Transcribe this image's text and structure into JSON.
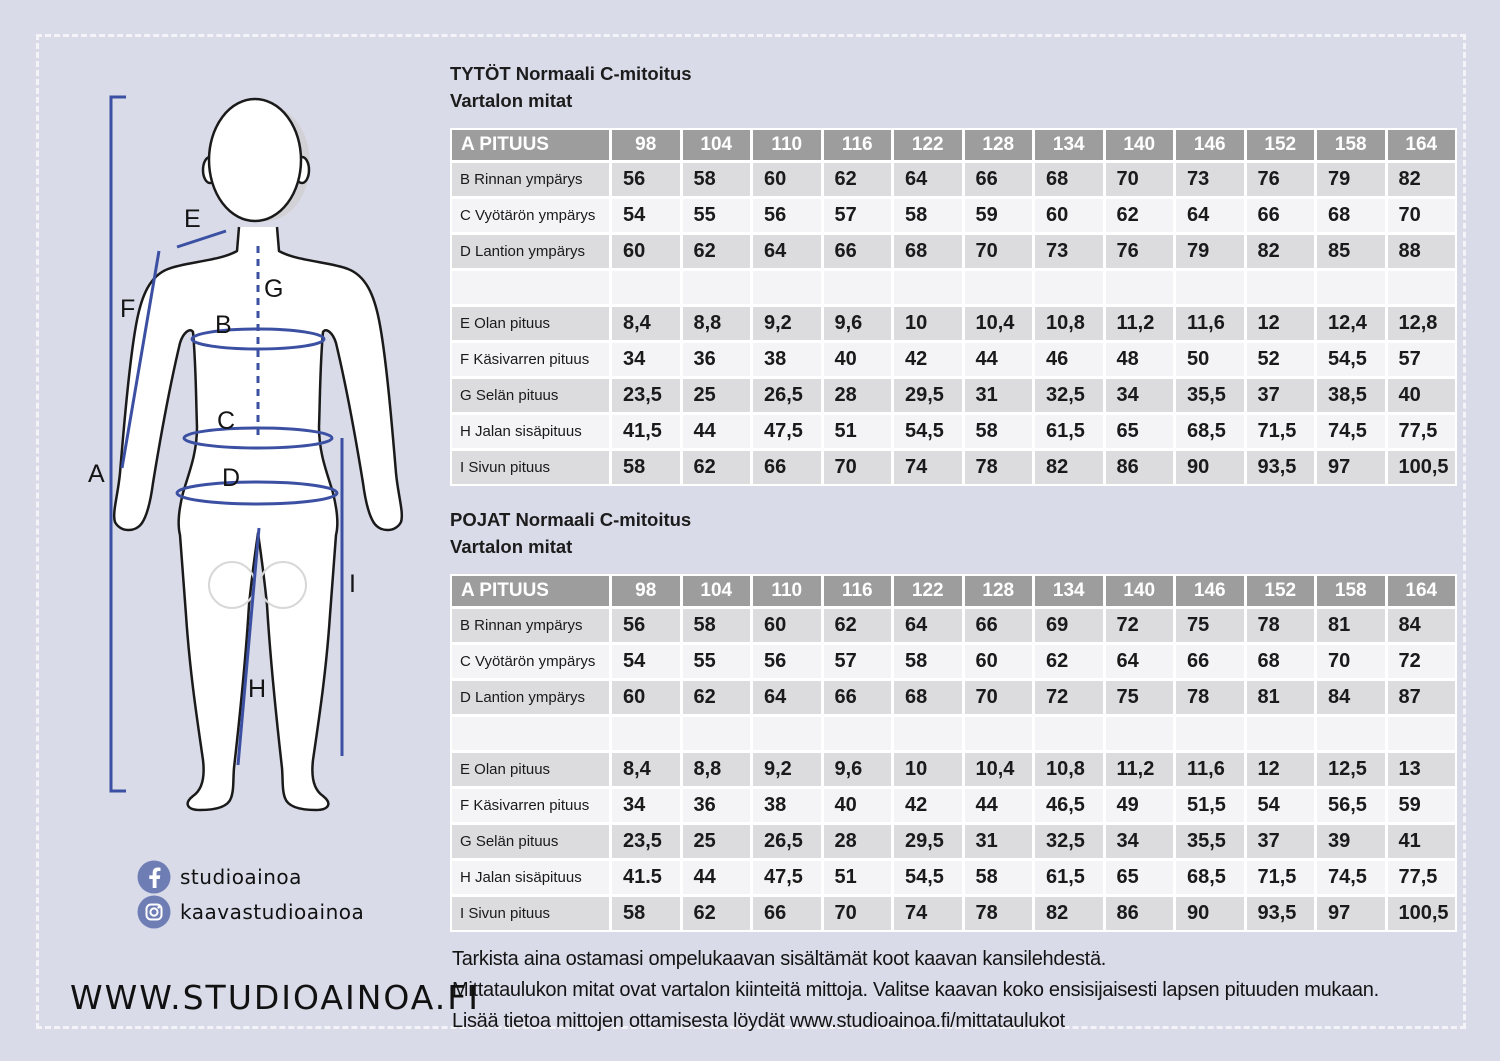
{
  "figure": {
    "labels": [
      "A",
      "B",
      "C",
      "D",
      "E",
      "F",
      "G",
      "H",
      "I"
    ]
  },
  "tables": {
    "girls": {
      "title": "TYTÖT Normaali C-mitoitus",
      "subtitle": "Vartalon mitat",
      "header": [
        "A PITUUS",
        "98",
        "104",
        "110",
        "116",
        "122",
        "128",
        "134",
        "140",
        "146",
        "152",
        "158",
        "164"
      ],
      "rows": [
        {
          "label": "B Rinnan ympärys",
          "values": [
            "56",
            "58",
            "60",
            "62",
            "64",
            "66",
            "68",
            "70",
            "73",
            "76",
            "79",
            "82"
          ]
        },
        {
          "label": "C Vyötärön ympärys",
          "values": [
            "54",
            "55",
            "56",
            "57",
            "58",
            "59",
            "60",
            "62",
            "64",
            "66",
            "68",
            "70"
          ]
        },
        {
          "label": "D Lantion ympärys",
          "values": [
            "60",
            "62",
            "64",
            "66",
            "68",
            "70",
            "73",
            "76",
            "79",
            "82",
            "85",
            "88"
          ]
        },
        {
          "label": "",
          "values": [
            "",
            "",
            "",
            "",
            "",
            "",
            "",
            "",
            "",
            "",
            "",
            ""
          ]
        },
        {
          "label": "E Olan pituus",
          "values": [
            "8,4",
            "8,8",
            "9,2",
            "9,6",
            "10",
            "10,4",
            "10,8",
            "11,2",
            "11,6",
            "12",
            "12,4",
            "12,8"
          ]
        },
        {
          "label": "F Käsivarren pituus",
          "values": [
            "34",
            "36",
            "38",
            "40",
            "42",
            "44",
            "46",
            "48",
            "50",
            "52",
            "54,5",
            "57"
          ]
        },
        {
          "label": "G Selän pituus",
          "values": [
            "23,5",
            "25",
            "26,5",
            "28",
            "29,5",
            "31",
            "32,5",
            "34",
            "35,5",
            "37",
            "38,5",
            "40"
          ]
        },
        {
          "label": "H Jalan sisäpituus",
          "values": [
            "41,5",
            "44",
            "47,5",
            "51",
            "54,5",
            "58",
            "61,5",
            "65",
            "68,5",
            "71,5",
            "74,5",
            "77,5"
          ]
        },
        {
          "label": "I Sivun pituus",
          "values": [
            "58",
            "62",
            "66",
            "70",
            "74",
            "78",
            "82",
            "86",
            "90",
            "93,5",
            "97",
            "100,5"
          ]
        }
      ]
    },
    "boys": {
      "title": "POJAT Normaali C-mitoitus",
      "subtitle": "Vartalon mitat",
      "header": [
        "A PITUUS",
        "98",
        "104",
        "110",
        "116",
        "122",
        "128",
        "134",
        "140",
        "146",
        "152",
        "158",
        "164"
      ],
      "rows": [
        {
          "label": "B Rinnan ympärys",
          "values": [
            "56",
            "58",
            "60",
            "62",
            "64",
            "66",
            "69",
            "72",
            "75",
            "78",
            "81",
            "84"
          ]
        },
        {
          "label": "C Vyötärön ympärys",
          "values": [
            "54",
            "55",
            "56",
            "57",
            "58",
            "60",
            "62",
            "64",
            "66",
            "68",
            "70",
            "72"
          ]
        },
        {
          "label": "D Lantion ympärys",
          "values": [
            "60",
            "62",
            "64",
            "66",
            "68",
            "70",
            "72",
            "75",
            "78",
            "81",
            "84",
            "87"
          ]
        },
        {
          "label": "",
          "values": [
            "",
            "",
            "",
            "",
            "",
            "",
            "",
            "",
            "",
            "",
            "",
            ""
          ]
        },
        {
          "label": "E Olan pituus",
          "values": [
            "8,4",
            "8,8",
            "9,2",
            "9,6",
            "10",
            "10,4",
            "10,8",
            "11,2",
            "11,6",
            "12",
            "12,5",
            "13"
          ]
        },
        {
          "label": "F Käsivarren pituus",
          "values": [
            "34",
            "36",
            "38",
            "40",
            "42",
            "44",
            "46,5",
            "49",
            "51,5",
            "54",
            "56,5",
            "59"
          ]
        },
        {
          "label": "G Selän pituus",
          "values": [
            "23,5",
            "25",
            "26,5",
            "28",
            "29,5",
            "31",
            "32,5",
            "34",
            "35,5",
            "37",
            "39",
            "41"
          ]
        },
        {
          "label": "H Jalan sisäpituus",
          "values": [
            "41.5",
            "44",
            "47,5",
            "51",
            "54,5",
            "58",
            "61,5",
            "65",
            "68,5",
            "71,5",
            "74,5",
            "77,5"
          ]
        },
        {
          "label": "I Sivun pituus",
          "values": [
            "58",
            "62",
            "66",
            "70",
            "74",
            "78",
            "82",
            "86",
            "90",
            "93,5",
            "97",
            "100,5"
          ]
        }
      ]
    }
  },
  "footer": {
    "line1": "Tarkista aina ostamasi ompelukaavan sisältämät koot kaavan kansilehdestä.",
    "line2": "Mittataulukon mitat ovat vartalon kiinteitä mittoja. Valitse kaavan koko ensisijaisesti lapsen pituuden mukaan.",
    "line3": "Lisää tietoa mittojen ottamisesta löydät www.studioainoa.fi/mittataulukot"
  },
  "social": {
    "facebook_handle": "studioainoa",
    "instagram_handle": "kaavastudioainoa",
    "website": "WWW.STUDIOAINOA.FI"
  },
  "colors": {
    "background": "#d9dbe9",
    "header_gray": "#9d9d9d",
    "band_dark": "#dcdcdf",
    "band_light": "#f4f4f6",
    "measure_blue": "#3b50a2",
    "icon_circle": "#6f7db5"
  }
}
